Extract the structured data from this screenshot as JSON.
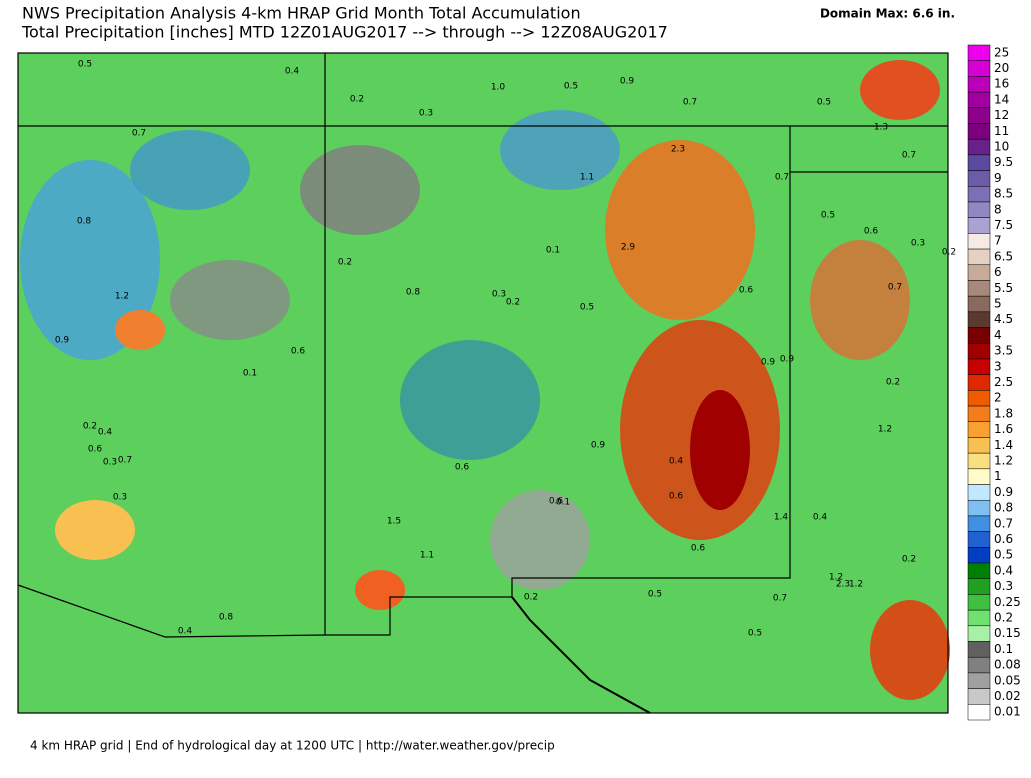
{
  "header": {
    "title": "NWS Precipitation Analysis 4-km HRAP Grid Month Total Accumulation",
    "subtitle": "Total Precipitation [inches] MTD 12Z01AUG2017 --> through --> 12Z08AUG2017",
    "domain_max": "Domain Max: 6.6 in."
  },
  "legend": {
    "items": [
      {
        "value": 25,
        "color": "#ee00ee"
      },
      {
        "value": 20,
        "color": "#d400d4"
      },
      {
        "value": 16,
        "color": "#bb00bb"
      },
      {
        "value": 14,
        "color": "#a000a0"
      },
      {
        "value": 12,
        "color": "#8c008c"
      },
      {
        "value": 11,
        "color": "#7a0080"
      },
      {
        "value": 10,
        "color": "#68208a"
      },
      {
        "value": 9.5,
        "color": "#5a4aa0"
      },
      {
        "value": 9,
        "color": "#6b5ca8"
      },
      {
        "value": 8.5,
        "color": "#7d6fb5"
      },
      {
        "value": 8,
        "color": "#9088c3"
      },
      {
        "value": 7.5,
        "color": "#aaa2d2"
      },
      {
        "value": 7,
        "color": "#f6ebe4"
      },
      {
        "value": 6.5,
        "color": "#e6d0c2"
      },
      {
        "value": 6,
        "color": "#c8aa98"
      },
      {
        "value": 5.5,
        "color": "#a8887a"
      },
      {
        "value": 5,
        "color": "#8a6a5c"
      },
      {
        "value": 4.5,
        "color": "#5a3a30"
      },
      {
        "value": 4,
        "color": "#780000"
      },
      {
        "value": 3.5,
        "color": "#a00000"
      },
      {
        "value": 3,
        "color": "#c80000"
      },
      {
        "value": 2.5,
        "color": "#e02800"
      },
      {
        "value": 2,
        "color": "#f05a00"
      },
      {
        "value": 1.8,
        "color": "#f47c1c"
      },
      {
        "value": 1.6,
        "color": "#f8a030"
      },
      {
        "value": 1.4,
        "color": "#f8c050"
      },
      {
        "value": 1.2,
        "color": "#f8e080"
      },
      {
        "value": 1,
        "color": "#fffbc8"
      },
      {
        "value": 0.9,
        "color": "#c0e8ff"
      },
      {
        "value": 0.8,
        "color": "#80c0f0"
      },
      {
        "value": 0.7,
        "color": "#4090e0"
      },
      {
        "value": 0.6,
        "color": "#2060d0"
      },
      {
        "value": 0.5,
        "color": "#0040c0"
      },
      {
        "value": 0.4,
        "color": "#008000"
      },
      {
        "value": 0.3,
        "color": "#20a020"
      },
      {
        "value": 0.25,
        "color": "#40c040"
      },
      {
        "value": 0.2,
        "color": "#70e070"
      },
      {
        "value": 0.15,
        "color": "#a8f0a8"
      },
      {
        "value": 0.1,
        "color": "#606060"
      },
      {
        "value": 0.08,
        "color": "#808080"
      },
      {
        "value": 0.05,
        "color": "#a0a0a0"
      },
      {
        "value": 0.02,
        "color": "#c8c8c8"
      },
      {
        "value": 0.01,
        "color": "#ffffff"
      }
    ]
  },
  "map": {
    "labels": [
      "0.5",
      "0.4",
      "1.0",
      "0.5",
      "0.9",
      "0.7",
      "0.5",
      "1.3",
      "0.7",
      "0.2",
      "0.3",
      "2.3",
      "0.7",
      "1.1",
      "0.7",
      "0.8",
      "0.5",
      "0.6",
      "0.3",
      "0.2",
      "2.9",
      "0.1",
      "0.2",
      "1.2",
      "0.8",
      "0.3",
      "0.2",
      "0.5",
      "0.6",
      "0.7",
      "0.9",
      "0.6",
      "0.9",
      "0.9",
      "0.1",
      "0.2",
      "0.2",
      "0.4",
      "0.6",
      "1.2",
      "0.9",
      "0.3",
      "0.7",
      "0.6",
      "0.4",
      "0.3",
      "0.6",
      "0.6",
      "0.1",
      "1.4",
      "0.4",
      "1.5",
      "0.6",
      "1.1",
      "0.2",
      "1.2",
      "2.3",
      "1.2",
      "0.2",
      "0.5",
      "0.7",
      "0.8",
      "0.4",
      "0.5"
    ]
  },
  "footer": "4 km HRAP grid | End of hydrological day at 1200 UTC | http://water.weather.gov/precip"
}
